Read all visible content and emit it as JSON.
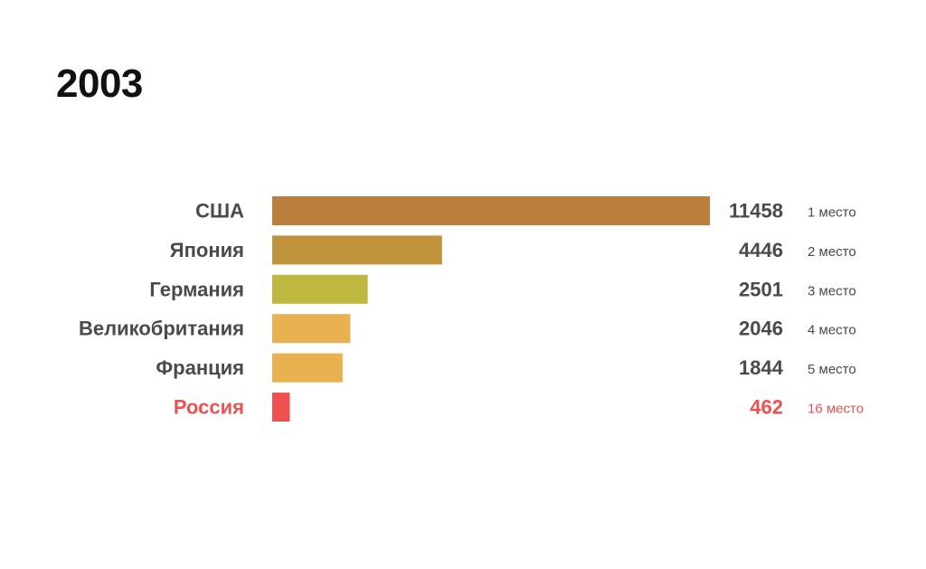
{
  "title": "2003",
  "chart_data": {
    "type": "bar",
    "orientation": "horizontal",
    "categories": [
      "США",
      "Япония",
      "Германия",
      "Великобритания",
      "Франция",
      "Россия"
    ],
    "values": [
      11458,
      4446,
      2501,
      2046,
      1844,
      462
    ],
    "value_labels": [
      "11458",
      "4446",
      "2501",
      "2046",
      "1844",
      "462"
    ],
    "rank_labels": [
      "1 место",
      "2 место",
      "3 место",
      "4 место",
      "5 место",
      "16 место"
    ],
    "bar_colors": [
      "#bc7e3c",
      "#bf923c",
      "#bfb840",
      "#e9b14f",
      "#e9b14f",
      "#ef5050"
    ],
    "label_colors": [
      "#4a4a4a",
      "#4a4a4a",
      "#4a4a4a",
      "#4a4a4a",
      "#4a4a4a",
      "#ef5050"
    ],
    "xlim": [
      0,
      11458
    ],
    "grid": false,
    "legend": "none"
  }
}
